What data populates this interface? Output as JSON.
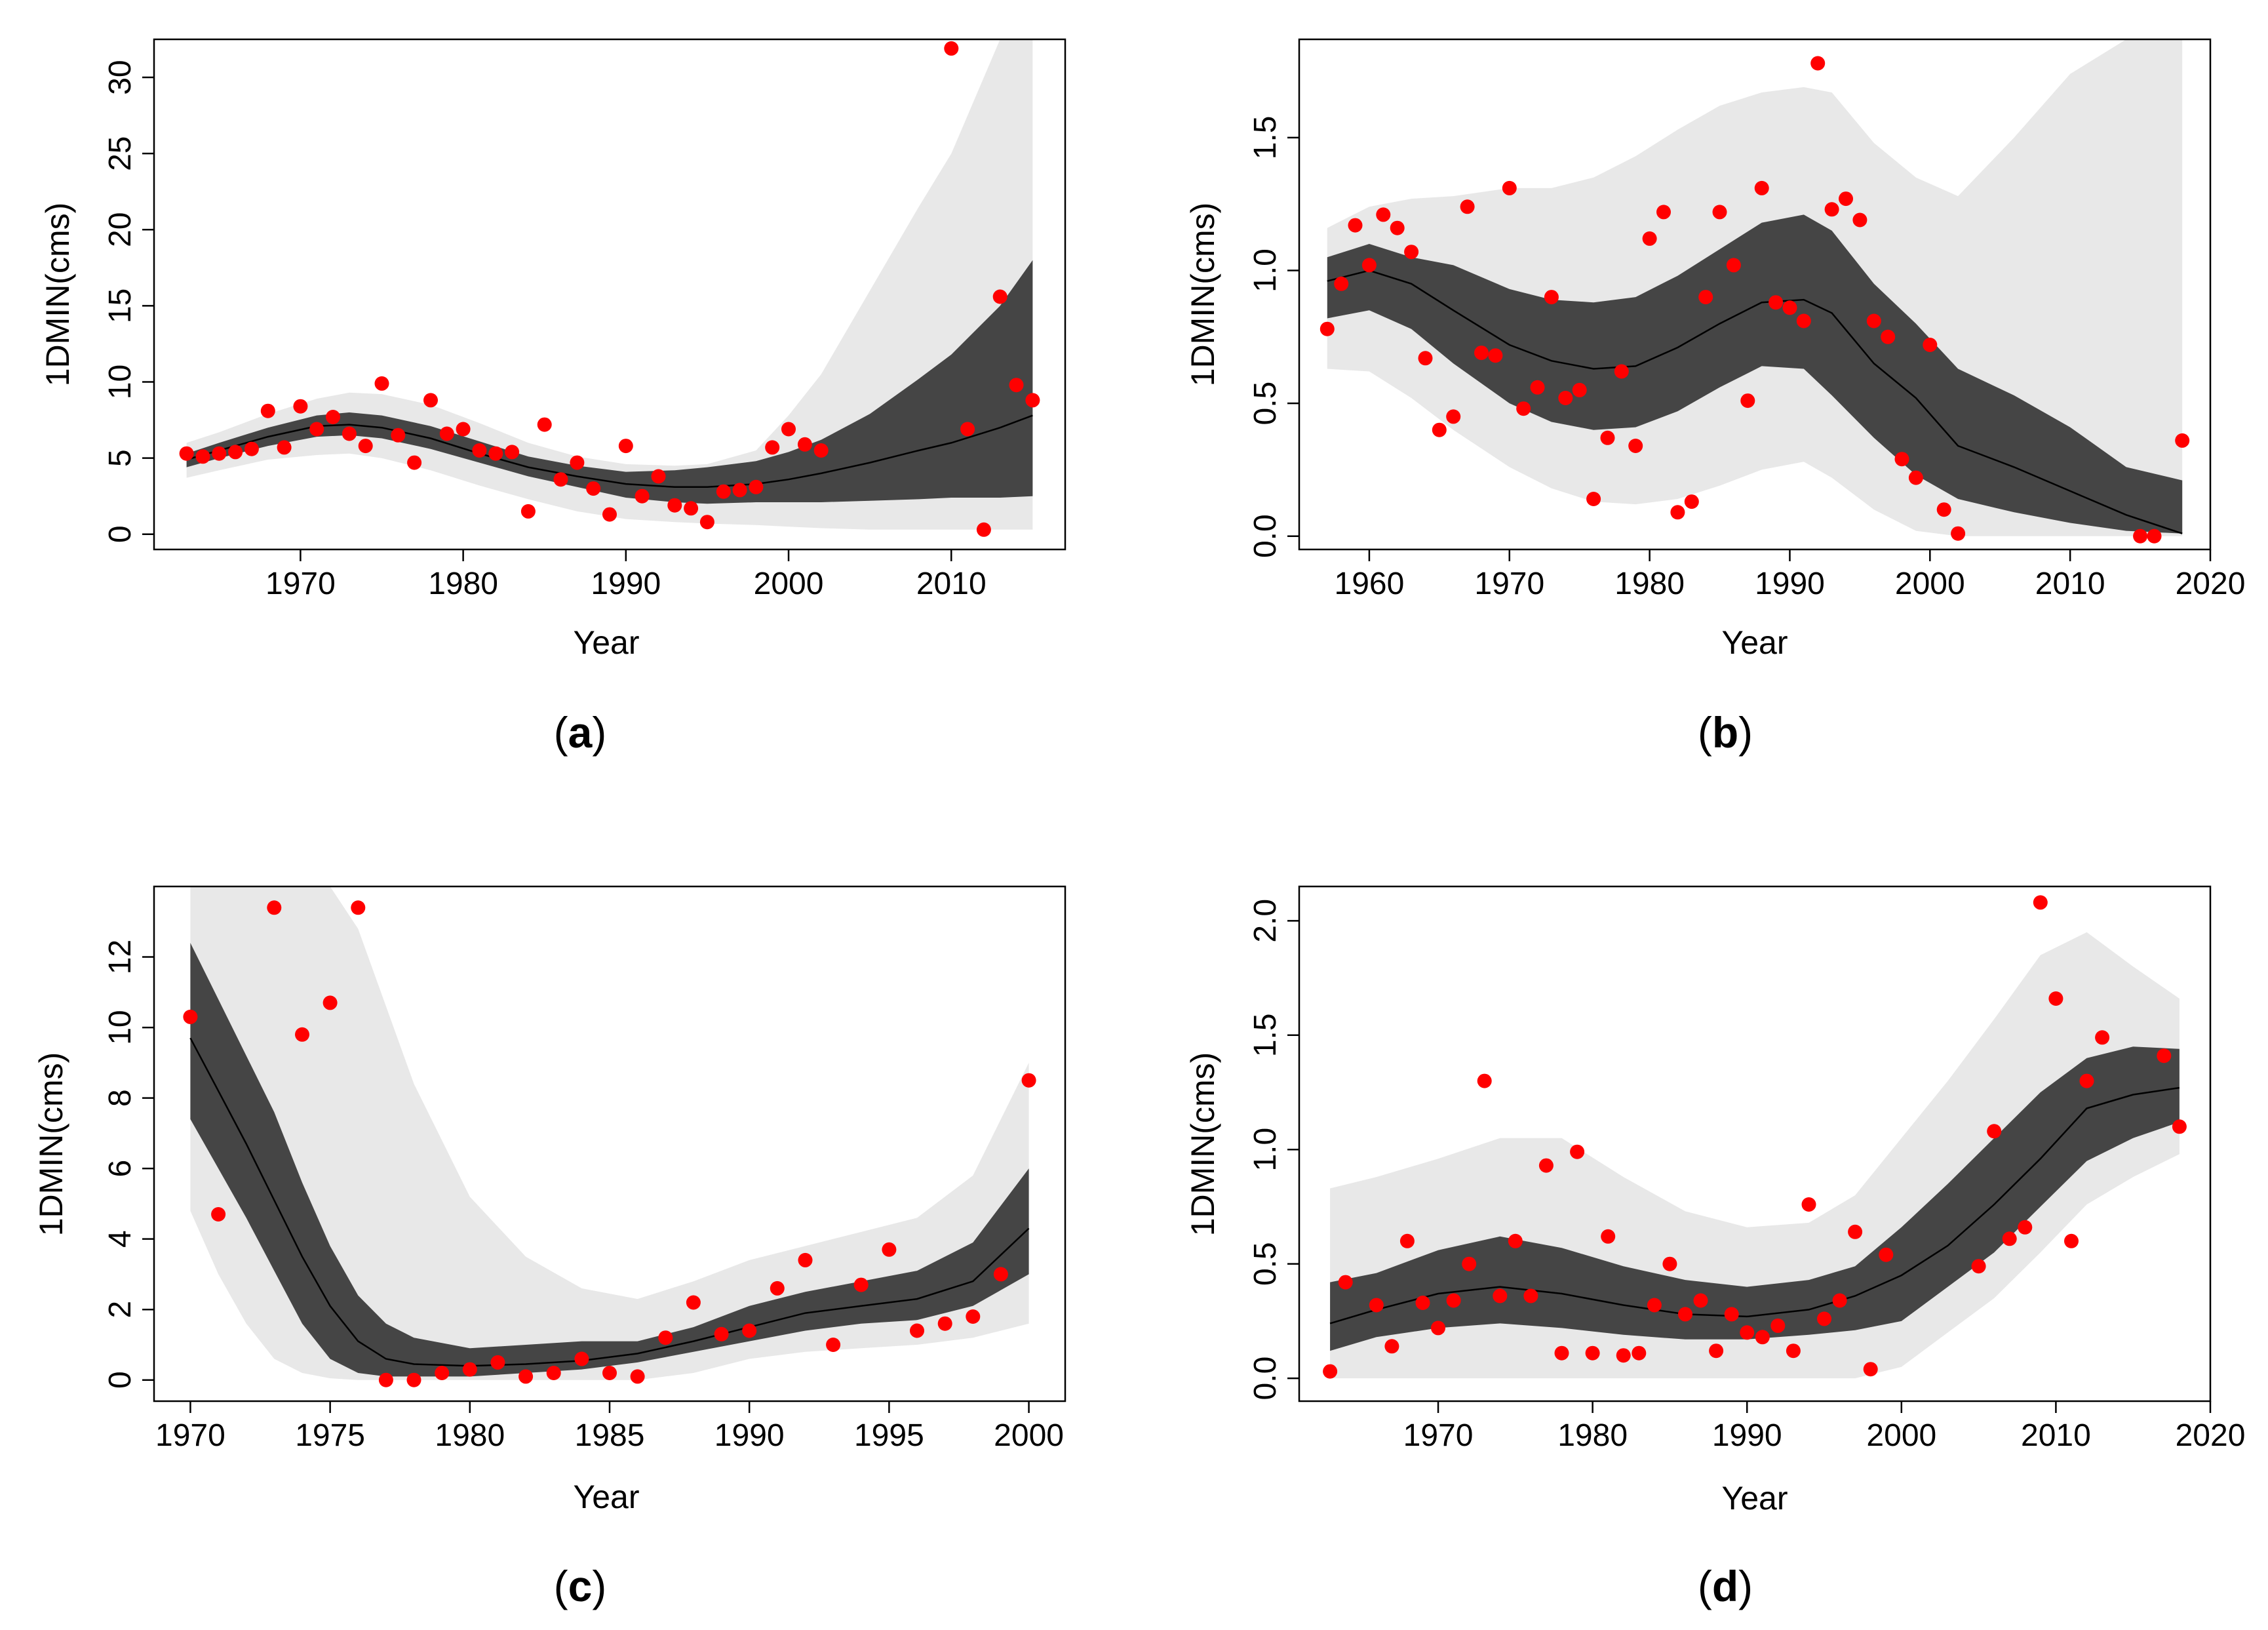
{
  "figure": {
    "style": {
      "outer_band_color": "#e8e8e8",
      "inner_band_color": "#454545",
      "median_line_color": "#000000",
      "point_color": "#ff0000",
      "axis_color": "#000000"
    }
  },
  "chart_data": [
    {
      "panel": "a",
      "type": "scatter",
      "caption_letter": "a",
      "xlabel": "Year",
      "ylabel": "1DMIN(cms)",
      "xlim": [
        1961,
        2017
      ],
      "ylim": [
        -1,
        32.5
      ],
      "xticks": [
        1970,
        1980,
        1990,
        2000,
        2010
      ],
      "yticks": [
        0,
        5,
        10,
        15,
        20,
        25,
        30
      ],
      "points": {
        "x": [
          1963,
          1964,
          1965,
          1966,
          1967,
          1968,
          1969,
          1970,
          1971,
          1972,
          1973,
          1974,
          1975,
          1976,
          1977,
          1978,
          1979,
          1980,
          1981,
          1982,
          1983,
          1984,
          1985,
          1986,
          1987,
          1988,
          1989,
          1990,
          1991,
          1992,
          1993,
          1994,
          1995,
          1996,
          1997,
          1998,
          1999,
          2000,
          2001,
          2002,
          2010,
          2011,
          2012,
          2013,
          2014,
          2015
        ],
        "y": [
          5.3,
          5.1,
          5.3,
          5.4,
          5.6,
          8.1,
          5.7,
          8.4,
          6.9,
          7.7,
          6.6,
          5.8,
          9.9,
          6.5,
          4.7,
          8.8,
          6.6,
          6.9,
          5.5,
          5.3,
          5.4,
          1.5,
          7.2,
          3.6,
          4.7,
          3.0,
          1.3,
          5.8,
          2.5,
          3.8,
          1.9,
          1.7,
          0.8,
          2.8,
          2.9,
          3.1,
          5.7,
          6.9,
          5.9,
          5.5,
          31.9,
          6.9,
          0.3,
          15.6,
          9.8,
          8.8
        ]
      },
      "band_x": [
        1963,
        1965,
        1968,
        1971,
        1973,
        1975,
        1978,
        1981,
        1984,
        1987,
        1990,
        1993,
        1995,
        1998,
        2000,
        2002,
        2005,
        2008,
        2010,
        2013,
        2015
      ],
      "median": [
        4.9,
        5.5,
        6.4,
        7.1,
        7.2,
        7.0,
        6.3,
        5.3,
        4.4,
        3.8,
        3.3,
        3.1,
        3.1,
        3.3,
        3.6,
        4.0,
        4.7,
        5.5,
        6.0,
        7.0,
        7.8
      ],
      "inner_lower": [
        4.4,
        5.0,
        5.8,
        6.4,
        6.5,
        6.3,
        5.6,
        4.7,
        3.8,
        3.1,
        2.4,
        2.1,
        2.0,
        2.1,
        2.1,
        2.1,
        2.2,
        2.3,
        2.4,
        2.4,
        2.5
      ],
      "inner_upper": [
        5.3,
        6.0,
        7.0,
        7.8,
        8.0,
        7.8,
        7.1,
        6.1,
        5.1,
        4.5,
        4.1,
        4.2,
        4.4,
        4.8,
        5.4,
        6.2,
        7.9,
        10.2,
        11.8,
        15.0,
        18.0
      ],
      "outer_lower": [
        3.7,
        4.2,
        4.9,
        5.2,
        5.3,
        5.0,
        4.2,
        3.2,
        2.3,
        1.5,
        1.0,
        0.8,
        0.7,
        0.6,
        0.5,
        0.4,
        0.3,
        0.3,
        0.3,
        0.3,
        0.3
      ],
      "outer_upper": [
        6.0,
        6.7,
        7.9,
        8.9,
        9.3,
        9.2,
        8.5,
        7.3,
        6.0,
        5.1,
        4.6,
        4.5,
        4.6,
        5.5,
        7.8,
        10.5,
        16.0,
        21.5,
        25.0,
        32.5,
        32.5
      ]
    },
    {
      "panel": "b",
      "type": "scatter",
      "caption_letter": "b",
      "xlabel": "Year",
      "ylabel": "1DMIN(cms)",
      "xlim": [
        1955,
        2020
      ],
      "ylim": [
        -0.05,
        1.87
      ],
      "xticks": [
        1960,
        1970,
        1980,
        1990,
        2000,
        2010,
        2020
      ],
      "yticks": [
        0.0,
        0.5,
        1.0,
        1.5
      ],
      "ytick_labels": [
        "0.0",
        "0.5",
        "1.0",
        "1.5"
      ],
      "points": {
        "x": [
          1957,
          1958,
          1959,
          1960,
          1961,
          1962,
          1963,
          1964,
          1965,
          1966,
          1967,
          1968,
          1969,
          1970,
          1971,
          1972,
          1973,
          1974,
          1975,
          1976,
          1977,
          1978,
          1979,
          1980,
          1981,
          1982,
          1983,
          1984,
          1985,
          1986,
          1987,
          1988,
          1989,
          1990,
          1991,
          1992,
          1993,
          1994,
          1995,
          1996,
          1997,
          1998,
          1999,
          2000,
          2001,
          2002,
          2015,
          2016,
          2018
        ],
        "y": [
          0.78,
          0.95,
          1.17,
          1.02,
          1.21,
          1.16,
          1.07,
          0.67,
          0.4,
          0.45,
          1.24,
          0.69,
          0.68,
          1.31,
          0.48,
          0.56,
          0.9,
          0.52,
          0.55,
          0.14,
          0.37,
          0.62,
          0.34,
          1.12,
          1.22,
          0.09,
          0.13,
          0.9,
          1.22,
          1.02,
          0.51,
          1.31,
          0.88,
          0.86,
          0.81,
          1.78,
          1.23,
          1.27,
          1.19,
          0.81,
          0.75,
          0.29,
          0.22,
          0.72,
          0.1,
          0.01,
          0.0,
          0.0,
          0.36
        ]
      },
      "band_x": [
        1957,
        1960,
        1963,
        1966,
        1970,
        1973,
        1976,
        1979,
        1982,
        1985,
        1988,
        1991,
        1993,
        1996,
        1999,
        2002,
        2006,
        2010,
        2014,
        2018
      ],
      "median": [
        0.96,
        1.0,
        0.95,
        0.85,
        0.72,
        0.66,
        0.63,
        0.64,
        0.71,
        0.8,
        0.88,
        0.89,
        0.84,
        0.65,
        0.52,
        0.34,
        0.26,
        0.17,
        0.08,
        0.01
      ],
      "inner_lower": [
        0.82,
        0.85,
        0.78,
        0.65,
        0.5,
        0.43,
        0.4,
        0.41,
        0.47,
        0.56,
        0.64,
        0.63,
        0.53,
        0.37,
        0.23,
        0.14,
        0.09,
        0.05,
        0.02,
        0.01
      ],
      "inner_upper": [
        1.05,
        1.1,
        1.05,
        1.02,
        0.93,
        0.89,
        0.88,
        0.9,
        0.98,
        1.08,
        1.18,
        1.21,
        1.15,
        0.95,
        0.8,
        0.63,
        0.53,
        0.41,
        0.26,
        0.21
      ],
      "outer_lower": [
        0.63,
        0.62,
        0.52,
        0.4,
        0.26,
        0.18,
        0.13,
        0.12,
        0.14,
        0.19,
        0.25,
        0.28,
        0.22,
        0.1,
        0.02,
        0.0,
        0.0,
        0.0,
        0.0,
        0.0
      ],
      "outer_upper": [
        1.16,
        1.24,
        1.27,
        1.28,
        1.31,
        1.31,
        1.35,
        1.43,
        1.53,
        1.62,
        1.67,
        1.69,
        1.67,
        1.48,
        1.35,
        1.28,
        1.5,
        1.74,
        1.87,
        1.87
      ]
    },
    {
      "panel": "c",
      "type": "scatter",
      "caption_letter": "c",
      "xlabel": "Year",
      "ylabel": "1DMIN(cms)",
      "xlim": [
        1968.7,
        2001.3
      ],
      "ylim": [
        -0.6,
        14.0
      ],
      "xticks": [
        1970,
        1975,
        1980,
        1985,
        1990,
        1995,
        2000
      ],
      "yticks": [
        0,
        2,
        4,
        6,
        8,
        10,
        12
      ],
      "points": {
        "x": [
          1970,
          1971,
          1973,
          1974,
          1975,
          1976,
          1977,
          1978,
          1979,
          1980,
          1981,
          1982,
          1983,
          1984,
          1985,
          1986,
          1987,
          1988,
          1989,
          1990,
          1991,
          1992,
          1993,
          1994,
          1995,
          1996,
          1997,
          1998,
          1999,
          2000
        ],
        "y": [
          10.3,
          4.7,
          13.4,
          9.8,
          10.7,
          13.4,
          0.0,
          0.0,
          0.2,
          0.3,
          0.5,
          0.1,
          0.2,
          0.6,
          0.2,
          0.1,
          1.2,
          2.2,
          1.3,
          1.4,
          2.6,
          3.4,
          1.0,
          2.7,
          3.7,
          1.4,
          1.6,
          1.8,
          3.0,
          8.5
        ]
      },
      "band_x": [
        1970,
        1971,
        1972,
        1973,
        1974,
        1975,
        1976,
        1977,
        1978,
        1980,
        1982,
        1984,
        1986,
        1988,
        1990,
        1992,
        1994,
        1996,
        1998,
        2000
      ],
      "median": [
        9.7,
        8.2,
        6.7,
        5.1,
        3.5,
        2.1,
        1.1,
        0.6,
        0.45,
        0.4,
        0.45,
        0.55,
        0.75,
        1.1,
        1.5,
        1.9,
        2.1,
        2.3,
        2.8,
        4.3
      ],
      "inner_lower": [
        7.4,
        6.0,
        4.6,
        3.1,
        1.6,
        0.6,
        0.2,
        0.1,
        0.1,
        0.1,
        0.2,
        0.3,
        0.5,
        0.8,
        1.1,
        1.4,
        1.6,
        1.7,
        2.1,
        3.0
      ],
      "inner_upper": [
        12.4,
        10.8,
        9.2,
        7.6,
        5.6,
        3.8,
        2.4,
        1.6,
        1.2,
        0.9,
        1.0,
        1.1,
        1.1,
        1.5,
        2.1,
        2.5,
        2.8,
        3.1,
        3.9,
        6.0
      ],
      "outer_lower": [
        4.8,
        3.0,
        1.6,
        0.6,
        0.2,
        0.05,
        0.0,
        0.0,
        0.0,
        0.0,
        0.0,
        0.0,
        0.0,
        0.2,
        0.6,
        0.8,
        0.9,
        1.0,
        1.2,
        1.6
      ],
      "outer_upper": [
        14.0,
        14.0,
        14.0,
        14.0,
        14.0,
        14.0,
        12.8,
        10.6,
        8.4,
        5.2,
        3.5,
        2.6,
        2.3,
        2.8,
        3.4,
        3.8,
        4.2,
        4.6,
        5.8,
        9.0
      ]
    },
    {
      "panel": "d",
      "type": "scatter",
      "caption_letter": "d",
      "xlabel": "Year",
      "ylabel": "1DMIN(cms)",
      "xlim": [
        1961,
        2020
      ],
      "ylim": [
        -0.1,
        2.15
      ],
      "xticks": [
        1970,
        1980,
        1990,
        2000,
        2010,
        2020
      ],
      "yticks": [
        0.0,
        0.5,
        1.0,
        1.5,
        2.0
      ],
      "ytick_labels": [
        "0.0",
        "0.5",
        "1.0",
        "1.5",
        "2.0"
      ],
      "points": {
        "x": [
          1963,
          1964,
          1966,
          1967,
          1968,
          1969,
          1970,
          1971,
          1972,
          1973,
          1974,
          1975,
          1976,
          1977,
          1978,
          1979,
          1980,
          1981,
          1982,
          1983,
          1984,
          1985,
          1986,
          1987,
          1988,
          1989,
          1990,
          1991,
          1992,
          1993,
          1994,
          1995,
          1996,
          1997,
          1998,
          1999,
          2005,
          2006,
          2007,
          2008,
          2009,
          2010,
          2011,
          2012,
          2013,
          2017,
          2018
        ],
        "y": [
          0.03,
          0.42,
          0.32,
          0.14,
          0.6,
          0.33,
          0.22,
          0.34,
          0.5,
          1.3,
          0.36,
          0.6,
          0.36,
          0.93,
          0.11,
          0.99,
          0.11,
          0.62,
          0.1,
          0.11,
          0.32,
          0.5,
          0.28,
          0.34,
          0.12,
          0.28,
          0.2,
          0.18,
          0.23,
          0.12,
          0.76,
          0.26,
          0.34,
          0.64,
          0.04,
          0.54,
          0.49,
          1.08,
          0.61,
          0.66,
          2.08,
          1.66,
          0.6,
          1.3,
          1.49,
          1.41,
          1.1
        ]
      },
      "band_x": [
        1963,
        1966,
        1970,
        1974,
        1978,
        1982,
        1986,
        1990,
        1994,
        1997,
        2000,
        2003,
        2006,
        2009,
        2012,
        2015,
        2018
      ],
      "median": [
        0.24,
        0.3,
        0.37,
        0.4,
        0.37,
        0.32,
        0.28,
        0.27,
        0.3,
        0.36,
        0.45,
        0.58,
        0.76,
        0.96,
        1.18,
        1.24,
        1.27
      ],
      "inner_lower": [
        0.12,
        0.18,
        0.22,
        0.24,
        0.22,
        0.19,
        0.17,
        0.17,
        0.19,
        0.21,
        0.25,
        0.4,
        0.55,
        0.75,
        0.95,
        1.05,
        1.12
      ],
      "inner_upper": [
        0.42,
        0.46,
        0.56,
        0.62,
        0.57,
        0.49,
        0.43,
        0.4,
        0.43,
        0.49,
        0.66,
        0.85,
        1.05,
        1.25,
        1.4,
        1.45,
        1.44
      ],
      "outer_lower": [
        0.0,
        0.0,
        0.0,
        0.0,
        0.0,
        0.0,
        0.0,
        0.0,
        0.0,
        0.0,
        0.05,
        0.2,
        0.35,
        0.55,
        0.76,
        0.88,
        0.98
      ],
      "outer_upper": [
        0.83,
        0.88,
        0.96,
        1.05,
        1.05,
        0.88,
        0.73,
        0.66,
        0.68,
        0.8,
        1.05,
        1.3,
        1.57,
        1.85,
        1.95,
        1.8,
        1.66
      ]
    }
  ]
}
